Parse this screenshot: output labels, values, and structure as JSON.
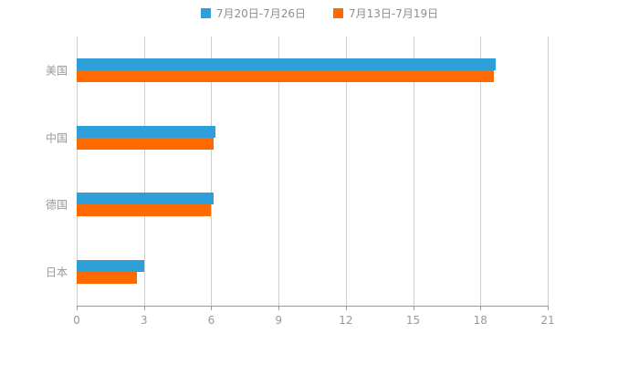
{
  "chart_data": {
    "type": "bar",
    "orientation": "horizontal",
    "title": "",
    "xlabel": "",
    "ylabel": "",
    "categories": [
      "美国",
      "中国",
      "德国",
      "日本"
    ],
    "series": [
      {
        "name": "7月20日-7月26日",
        "color": "#2F9FD9",
        "values": [
          18.7,
          6.2,
          6.1,
          3.0
        ]
      },
      {
        "name": "7月13日-7月19日",
        "color": "#FF6A00",
        "values": [
          18.6,
          6.1,
          6.0,
          2.7
        ]
      }
    ],
    "xlim": [
      0,
      21
    ],
    "xticks": [
      0,
      3,
      6,
      9,
      12,
      15,
      18,
      21
    ],
    "grid": true,
    "legend_position": "top"
  },
  "colors": {
    "grid": "#cfcfcf",
    "axis": "#9a9a9a",
    "label": "#999999",
    "legend_text": "#8e8e8e",
    "background": "#ffffff"
  }
}
